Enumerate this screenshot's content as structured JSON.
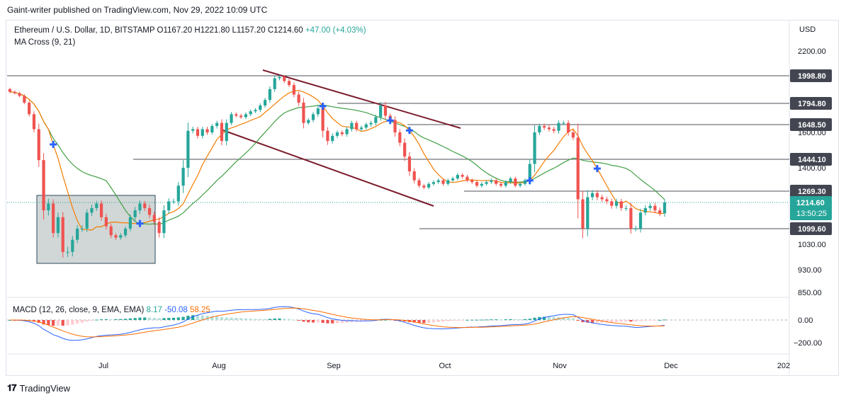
{
  "header": {
    "published": "Gaint-writer published on TradingView.com, Nov 29, 2022 10:09 UTC"
  },
  "legend": {
    "symbol": "Ethereum / U.S. Dollar, 1D, BITSTAMP",
    "open": "O1167.20",
    "high": "H1221.80",
    "low": "L1157.20",
    "close": "C1214.60",
    "change": "+47.00 (+4.03%)",
    "indicator": "MA Cross (9, 21)"
  },
  "macd_legend": {
    "label": "MACD (12, 26, close, 9, EMA, EMA)",
    "macd": "8.17",
    "signal": "-50.08",
    "hist": "58.25"
  },
  "footer": {
    "brand": "TradingView"
  },
  "colors": {
    "up": "#26a69a",
    "down": "#ef5350",
    "ma_fast": "#f57c00",
    "ma_slow": "#43a047",
    "channel": "#7b1c2c",
    "level_line": "#131722",
    "zone_fill": "#b2bdbd",
    "label_bg": "#434651",
    "price_bg": "#26a69a",
    "macd_line": "#2962ff",
    "signal_line": "#ff6d00"
  },
  "chart_data": {
    "type": "candlestick",
    "currency_label": "USD",
    "y_ticks": [
      "2200.00",
      "1600.00",
      "1400.00",
      "1030.00",
      "930.00",
      "850.00"
    ],
    "x_ticks": [
      "Jul",
      "Aug",
      "Sep",
      "Oct",
      "Nov",
      "Dec",
      "202"
    ],
    "macd_ticks": [
      "0.00",
      "−200.00"
    ],
    "levels": [
      {
        "value": 1998.8,
        "label": "1998.80"
      },
      {
        "value": 1794.8,
        "label": "1794.80"
      },
      {
        "value": 1648.5,
        "label": "1648.50"
      },
      {
        "value": 1444.1,
        "label": "1444.10"
      },
      {
        "value": 1269.3,
        "label": "1269.30"
      },
      {
        "value": 1099.6,
        "label": "1099.60"
      }
    ],
    "current_price": {
      "value": 1214.6,
      "label": "1214.60",
      "countdown": "13:50:25"
    },
    "closes": [
      1880,
      1870,
      1850,
      1800,
      1720,
      1620,
      1440,
      1180,
      1210,
      1080,
      1150,
      1000,
      1000,
      1050,
      1100,
      1100,
      1170,
      1190,
      1210,
      1150,
      1110,
      1070,
      1060,
      1070,
      1100,
      1150,
      1180,
      1210,
      1190,
      1160,
      1130,
      1080,
      1180,
      1220,
      1220,
      1300,
      1400,
      1610,
      1620,
      1580,
      1620,
      1600,
      1640,
      1660,
      1550,
      1660,
      1720,
      1710,
      1700,
      1720,
      1740,
      1750,
      1780,
      1820,
      1900,
      1980,
      1990,
      1960,
      1930,
      1860,
      1800,
      1660,
      1680,
      1720,
      1760,
      1610,
      1550,
      1580,
      1600,
      1590,
      1620,
      1660,
      1620,
      1630,
      1650,
      1660,
      1700,
      1780,
      1710,
      1680,
      1600,
      1540,
      1460,
      1380,
      1330,
      1300,
      1290,
      1310,
      1320,
      1330,
      1310,
      1330,
      1340,
      1360,
      1350,
      1330,
      1320,
      1300,
      1310,
      1320,
      1330,
      1310,
      1300,
      1320,
      1340,
      1300,
      1310,
      1330,
      1420,
      1600,
      1640,
      1630,
      1620,
      1610,
      1660,
      1660,
      1600,
      1570,
      1230,
      1100,
      1240,
      1260,
      1240,
      1230,
      1220,
      1200,
      1220,
      1190,
      1190,
      1100,
      1100,
      1170,
      1190,
      1200,
      1180,
      1167,
      1214.6
    ],
    "volatility": [
      40,
      40,
      45,
      45,
      60,
      80,
      140,
      160,
      90,
      80,
      80,
      90,
      80,
      70,
      60,
      60,
      60,
      60,
      50,
      60,
      60,
      50,
      40,
      40,
      40,
      50,
      60,
      60,
      50,
      60,
      60,
      80,
      90,
      60,
      50,
      80,
      160,
      210,
      60,
      60,
      60,
      60,
      50,
      60,
      100,
      100,
      60,
      50,
      50,
      50,
      50,
      50,
      60,
      60,
      80,
      80,
      60,
      60,
      60,
      80,
      90,
      140,
      50,
      60,
      70,
      160,
      90,
      60,
      50,
      50,
      60,
      60,
      60,
      50,
      50,
      60,
      70,
      100,
      100,
      60,
      100,
      80,
      100,
      100,
      70,
      50,
      40,
      40,
      40,
      40,
      40,
      40,
      40,
      40,
      40,
      40,
      40,
      40,
      40,
      40,
      40,
      40,
      40,
      40,
      40,
      40,
      40,
      40,
      100,
      180,
      60,
      60,
      60,
      60,
      70,
      60,
      80,
      60,
      340,
      170,
      140,
      60,
      60,
      50,
      50,
      50,
      50,
      50,
      50,
      90,
      50,
      70,
      50,
      50,
      50,
      50,
      60
    ],
    "ma_fast_period": 9,
    "ma_slow_period": 21,
    "macd_hist_range": [
      -120,
      100
    ],
    "macd_line_range": [
      -220,
      120
    ]
  }
}
